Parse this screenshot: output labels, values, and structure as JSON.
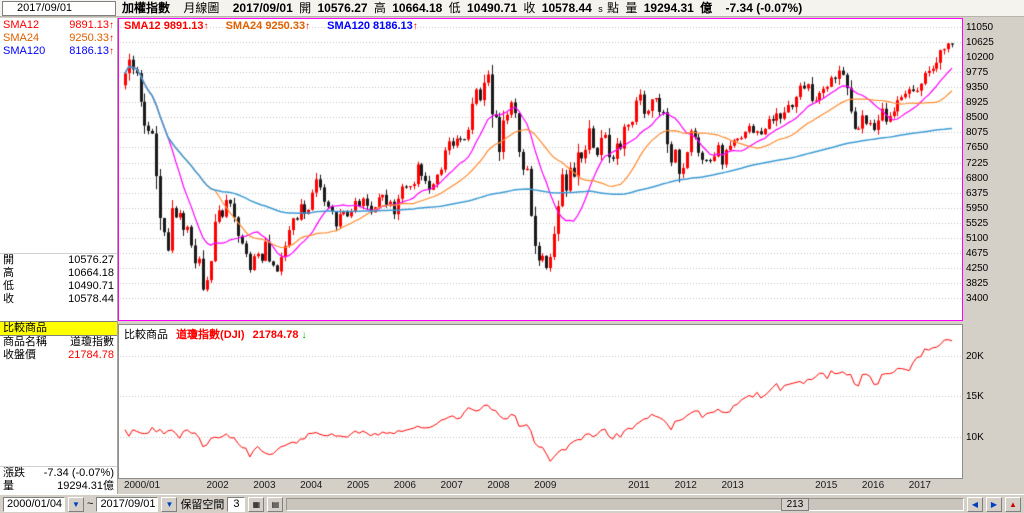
{
  "header": {
    "bar_date": "2017/09/01",
    "instrument": "加權指數",
    "period": "月線圖",
    "date": "2017/09/01",
    "open_label": "開",
    "open": "10576.27",
    "high_label": "高",
    "high": "10664.18",
    "low_label": "低",
    "low": "10490.71",
    "close_label": "收",
    "close": "10578.44",
    "flag": "s",
    "point_label": "點",
    "volume_label": "量",
    "volume": "19294.31",
    "volume_unit": "億",
    "change": "-7.34 (-0.07%)"
  },
  "sidebar": {
    "sma": [
      {
        "label": "SMA12",
        "value": "9891.13",
        "arrow": "↑"
      },
      {
        "label": "SMA24",
        "value": "9250.33",
        "arrow": "↑"
      },
      {
        "label": "SMA120",
        "value": "8186.13",
        "arrow": "↑"
      }
    ],
    "quote": [
      {
        "label": "開",
        "value": "10576.27"
      },
      {
        "label": "高",
        "value": "10664.18"
      },
      {
        "label": "低",
        "value": "10490.71"
      },
      {
        "label": "收",
        "value": "10578.44"
      }
    ],
    "compare_header": "比較商品",
    "compare": [
      {
        "label": "商品名稱",
        "value": "道瓊指數"
      },
      {
        "label": "收盤價",
        "value": "21784.78"
      }
    ],
    "footer": [
      {
        "label": "漲跌",
        "value": "-7.34 (-0.07%)"
      },
      {
        "label": "量",
        "value": "19294.31億"
      }
    ]
  },
  "lower_legend": {
    "label": "比較商品",
    "name": "道瓊指數(DJI)",
    "value": "21784.78",
    "arrow": "↓"
  },
  "x_axis": {
    "labels": [
      {
        "text": "2000/01",
        "month": 0
      },
      {
        "text": "2002",
        "month": 24
      },
      {
        "text": "2003",
        "month": 36
      },
      {
        "text": "2004",
        "month": 48
      },
      {
        "text": "2005",
        "month": 60
      },
      {
        "text": "2006",
        "month": 72
      },
      {
        "text": "2007",
        "month": 84
      },
      {
        "text": "2008",
        "month": 96
      },
      {
        "text": "2009",
        "month": 108
      },
      {
        "text": "2011",
        "month": 132
      },
      {
        "text": "2012",
        "month": 144
      },
      {
        "text": "2013",
        "month": 156
      },
      {
        "text": "2015",
        "month": 180
      },
      {
        "text": "2016",
        "month": 192
      },
      {
        "text": "2017",
        "month": 204
      }
    ]
  },
  "statusbar": {
    "start_date": "2000/01/04",
    "range_separator": "~",
    "end_date": "2017/09/01",
    "reserve_label": "保留空間",
    "reserve_value": "3",
    "bar_count": "213"
  },
  "ui_colors": {
    "compare_header_bg": "#ffff00",
    "arrow_up": "#ff0000",
    "arrow_down": "#00a000"
  },
  "chart_data": [
    {
      "type": "candlestick",
      "title": "加權指數 月線圖",
      "x_range": [
        "2000/01",
        "2017/09"
      ],
      "bar_count": 213,
      "ylim": [
        3400,
        11050
      ],
      "y_ticks": [
        11050,
        10625,
        10200,
        9775,
        9350,
        8925,
        8500,
        8075,
        7650,
        7225,
        6800,
        6375,
        5950,
        5525,
        5100,
        4675,
        4250,
        3825,
        3400
      ],
      "grid": true,
      "up_color": "#ff0000",
      "down_color": "#1a1a1a",
      "grid_color": "#c4c4c4",
      "border_color": "#ff00ff",
      "closes": [
        9744,
        10128,
        9854,
        9747,
        8939,
        8265,
        8115,
        8043,
        6841,
        5659,
        5256,
        4739,
        5936,
        5674,
        5797,
        5323,
        5410,
        4883,
        4380,
        4509,
        3636,
        3903,
        4442,
        5551,
        5872,
        5696,
        6167,
        6065,
        5675,
        5153,
        4940,
        4644,
        4191,
        4579,
        4646,
        4452,
        4990,
        4432,
        4321,
        4148,
        4555,
        4872,
        5318,
        5650,
        5611,
        6045,
        5771,
        5890,
        6375,
        6750,
        6522,
        6117,
        5977,
        5839,
        5420,
        5765,
        5845,
        5705,
        5844,
        6139,
        5994,
        6207,
        6005,
        5818,
        5962,
        6241,
        6312,
        6033,
        6118,
        5764,
        6203,
        6548,
        6532,
        6561,
        6613,
        7171,
        6847,
        6704,
        6454,
        6611,
        6883,
        7021,
        7567,
        7823,
        7699,
        7901,
        7884,
        7875,
        8145,
        8883,
        9287,
        8982,
        9476,
        9711,
        8586,
        8506,
        7521,
        8412,
        8572,
        8919,
        8619,
        7523,
        7024,
        7046,
        5719,
        4870,
        4460,
        4591,
        4247,
        4557,
        5210,
        5992,
        6890,
        6432,
        7077,
        6825,
        7509,
        7340,
        7582,
        8188,
        7640,
        7436,
        7920,
        8004,
        7374,
        7329,
        7760,
        7616,
        8237,
        8287,
        8372,
        8972,
        9145,
        8599,
        8683,
        9008,
        9046,
        8652,
        8644,
        7741,
        7225,
        7587,
        6904,
        7072,
        7517,
        8121,
        7933,
        7501,
        7301,
        7296,
        7270,
        7397,
        7715,
        7166,
        7580,
        7699,
        7850,
        7898,
        7919,
        8093,
        8254,
        8062,
        8107,
        8021,
        8173,
        8450,
        8406,
        8611,
        8462,
        8639,
        8849,
        8791,
        9075,
        9393,
        9315,
        9436,
        8966,
        8974,
        9187,
        9307,
        9361,
        9622,
        9586,
        9820,
        9701,
        9323,
        8665,
        8174,
        8181,
        8554,
        8320,
        8338,
        8145,
        8411,
        8744,
        8377,
        8535,
        8666,
        8984,
        9068,
        9166,
        9290,
        9240,
        9253,
        9448,
        9751,
        9812,
        9872,
        10041,
        10395,
        10427,
        10586,
        10578.44
      ],
      "sma": [
        {
          "name": "SMA12",
          "period": 12,
          "value": 9891.13,
          "line_color": "#ff00ff",
          "text_color": "#ff0000"
        },
        {
          "name": "SMA24",
          "period": 24,
          "value": 9250.33,
          "line_color": "#ff8c32",
          "text_color": "#e06000"
        },
        {
          "name": "SMA120",
          "period": 120,
          "value": 8186.13,
          "line_color": "#3d9bd5",
          "text_color": "#0000ff"
        }
      ]
    },
    {
      "type": "line",
      "name": "道瓊指數(DJI)",
      "last_value": 21784.78,
      "ylim": [
        6000,
        23000
      ],
      "y_ticks": [
        {
          "value": 20000,
          "label": "20K"
        },
        {
          "value": 15000,
          "label": "15K"
        },
        {
          "value": 10000,
          "label": "10K"
        }
      ],
      "grid": true,
      "color": "#ff0000",
      "values": [
        10940,
        10128,
        10922,
        10734,
        10522,
        10448,
        10522,
        11215,
        10651,
        10971,
        10414,
        10787,
        10887,
        10495,
        9879,
        10735,
        10912,
        10502,
        10523,
        9950,
        8848,
        9075,
        9852,
        10021,
        9920,
        10106,
        10404,
        9946,
        9925,
        9243,
        8737,
        8664,
        7592,
        8397,
        8896,
        8342,
        8054,
        7891,
        7992,
        8480,
        8850,
        8985,
        9234,
        9416,
        9275,
        9801,
        9782,
        10454,
        10488,
        10584,
        10358,
        10226,
        10188,
        10435,
        10140,
        10174,
        10080,
        10027,
        10428,
        10783,
        10490,
        10766,
        10504,
        10193,
        10467,
        10275,
        10641,
        10482,
        10569,
        10440,
        10806,
        10718,
        10865,
        10993,
        11109,
        11367,
        11168,
        11150,
        11186,
        11381,
        11679,
        12080,
        12222,
        12463,
        12622,
        12269,
        12354,
        13063,
        13628,
        13409,
        13212,
        13358,
        13896,
        13930,
        13372,
        13265,
        12650,
        12266,
        12263,
        12820,
        12638,
        11350,
        11378,
        11544,
        10851,
        9325,
        8829,
        8776,
        8001,
        7063,
        7609,
        8168,
        8500,
        8447,
        9172,
        9496,
        9712,
        9713,
        10345,
        10428,
        10067,
        10325,
        10857,
        11009,
        10137,
        9774,
        10466,
        10015,
        10788,
        11118,
        11006,
        11578,
        11892,
        12226,
        12320,
        12811,
        12570,
        12414,
        12143,
        11614,
        10913,
        11955,
        12046,
        12218,
        12633,
        12952,
        13212,
        13214,
        12393,
        12880,
        13009,
        13091,
        13437,
        13096,
        13026,
        13104,
        13861,
        14054,
        14579,
        14840,
        15116,
        14910,
        15500,
        14810,
        15130,
        15546,
        16086,
        16577,
        15699,
        16322,
        16458,
        16581,
        16717,
        16827,
        16563,
        17098,
        17043,
        17391,
        17828,
        17823,
        17165,
        18133,
        17776,
        17841,
        18011,
        17620,
        17690,
        16528,
        16285,
        17664,
        17720,
        17425,
        16466,
        16517,
        17685,
        17774,
        17787,
        17930,
        18432,
        18401,
        18308,
        18142,
        19124,
        19763,
        19864,
        20812,
        20663,
        20941,
        21009,
        21350,
        21891,
        21948,
        21784.78
      ]
    }
  ]
}
